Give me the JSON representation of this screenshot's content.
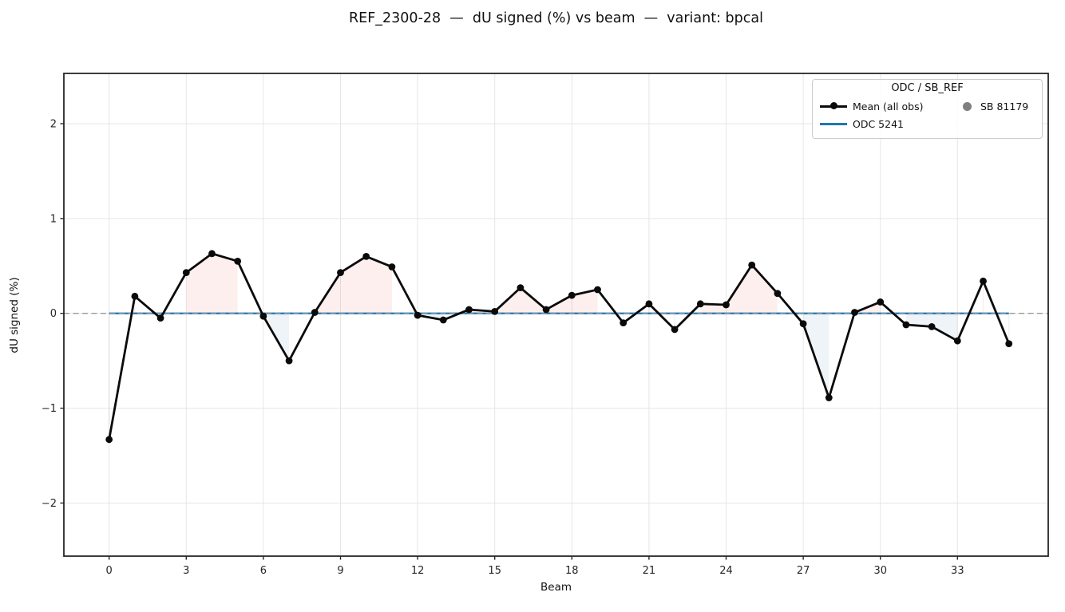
{
  "figure": {
    "title": "REF_2300-28  —  dU signed (%) vs beam  —  variant: bpcal"
  },
  "chart_data": {
    "type": "line",
    "title": "REF_2300-28 — dU signed (%) vs beam — variant: bpcal",
    "xlabel": "Beam",
    "ylabel": "dU signed (%)",
    "x": [
      0,
      1,
      2,
      3,
      4,
      5,
      6,
      7,
      8,
      9,
      10,
      11,
      12,
      13,
      14,
      15,
      16,
      17,
      18,
      19,
      20,
      21,
      22,
      23,
      24,
      25,
      26,
      27,
      28,
      29,
      30,
      31,
      32,
      33,
      34,
      35
    ],
    "series": [
      {
        "name": "Mean (all obs)",
        "color": "#0a0a0a",
        "marker": "circle",
        "values": [
          -1.33,
          0.18,
          -0.05,
          0.43,
          0.63,
          0.55,
          -0.03,
          -0.5,
          0.01,
          0.43,
          0.6,
          0.49,
          -0.02,
          -0.07,
          0.04,
          0.02,
          0.27,
          0.04,
          0.19,
          0.25,
          -0.1,
          0.1,
          -0.17,
          0.1,
          0.09,
          0.51,
          0.21,
          -0.11,
          -0.89,
          0.01,
          0.12,
          -0.12,
          -0.14,
          -0.29,
          0.34,
          -0.32
        ]
      }
    ],
    "reference_lines": [
      {
        "name": "ODC 5241",
        "color": "#1f77b4",
        "style": "solid",
        "y": 0,
        "x_span": [
          0,
          35
        ]
      },
      {
        "name": "zero-line",
        "color": "#999999",
        "style": "dashed",
        "y": 0,
        "x_span": "full"
      }
    ],
    "legend": {
      "title": "ODC / SB_REF",
      "position": "upper right",
      "entries": [
        {
          "label": "Mean (all obs)",
          "type": "line-marker",
          "color": "#0a0a0a"
        },
        {
          "label": "ODC 5241",
          "type": "line",
          "color": "#1f77b4"
        },
        {
          "label": "SB 81179",
          "type": "marker",
          "color": "#7f7f7f"
        }
      ]
    },
    "xticks": [
      0,
      3,
      6,
      9,
      12,
      15,
      18,
      21,
      24,
      27,
      30,
      33
    ],
    "yticks": [
      -2,
      -1,
      0,
      1,
      2
    ],
    "xlim": [
      -1.76,
      36.53
    ],
    "ylim": [
      -2.56,
      2.53
    ],
    "grid": true,
    "fill_between": {
      "baseline": 0,
      "positive_color": "rgba(235,100,85,0.10)",
      "negative_color": "rgba(95,150,190,0.10)"
    }
  },
  "style_colors": {
    "grid": "#e6e6e6",
    "spine": "#262626",
    "tick_text": "#262626"
  }
}
